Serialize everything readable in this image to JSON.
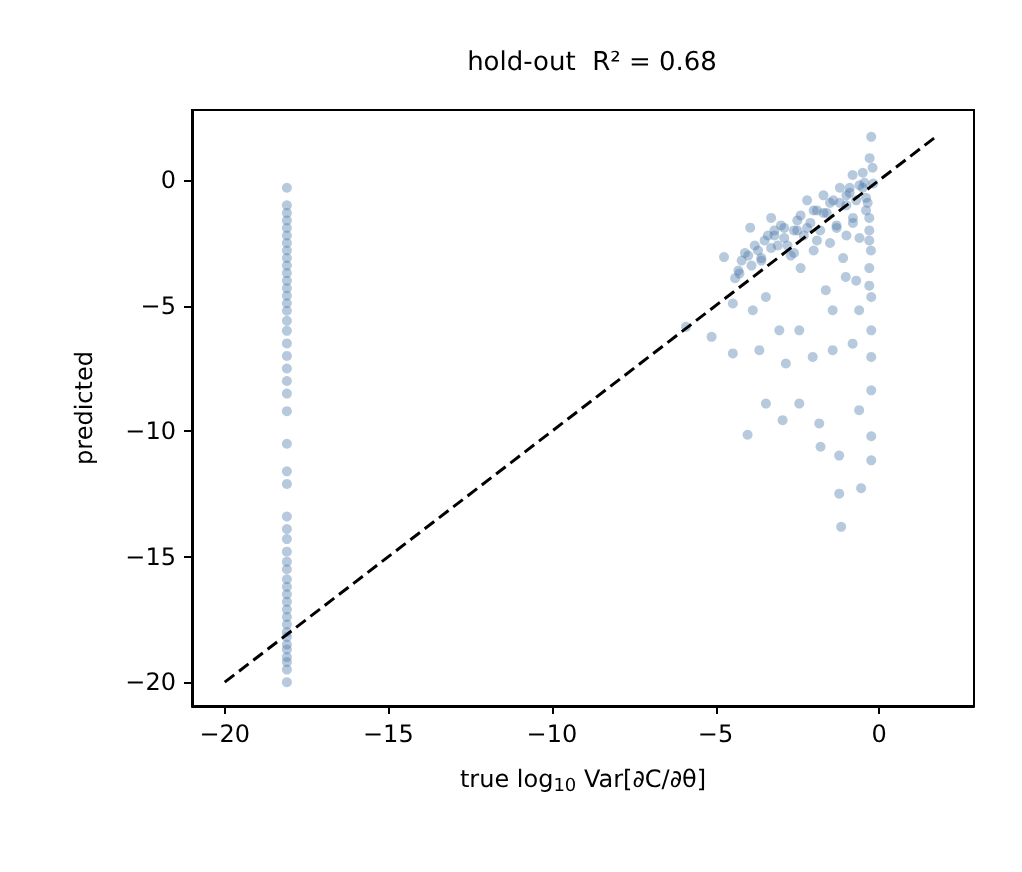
{
  "chart_data": {
    "type": "scatter",
    "title": "hold-out  R² = 0.68",
    "xlabel": "true log$_{10}$ Var[∂C/∂θ]",
    "ylabel": "predicted",
    "xlim": [
      -21.0,
      2.9
    ],
    "ylim": [
      -20.95,
      2.8
    ],
    "xticks": [
      -20,
      -15,
      -10,
      -5,
      0
    ],
    "yticks": [
      -20,
      -15,
      -10,
      -5,
      0
    ],
    "marker": "circle",
    "series": [
      {
        "color": "#4a78ab",
        "x": [
          -18.1,
          -18.1,
          -18.1,
          -18.1,
          -18.1,
          -18.1,
          -18.1,
          -18.1,
          -18.1,
          -18.1,
          -18.1,
          -18.1,
          -18.1,
          -18.1,
          -18.1,
          -18.1,
          -18.1,
          -18.1,
          -18.1,
          -18.1,
          -18.1,
          -18.1,
          -18.1,
          -18.1,
          -18.1,
          -18.1,
          -18.1,
          -18.1,
          -18.1,
          -18.1,
          -18.1,
          -18.1,
          -18.1,
          -18.1,
          -18.1,
          -18.1,
          -18.1,
          -18.1,
          -18.1,
          -18.1,
          -18.1,
          -18.1,
          -18.1,
          -18.1,
          -18.1,
          -18.1,
          -18.1,
          -18.1,
          -0.24,
          -0.29,
          -0.81,
          -0.18,
          -3.94,
          -4.74,
          -4.27,
          -5.9,
          -5.12,
          -4.47,
          -3.46,
          -4.02,
          -2.95,
          -1.79,
          -1.22,
          -1.22,
          -0.55,
          -1.16,
          -0.24,
          -0.24,
          -0.24,
          -0.24,
          -0.24,
          -0.24,
          -0.61,
          -1.83,
          -2.44,
          -2.85,
          -2.03,
          -3.66,
          -3.05,
          -2.44,
          -1.42,
          -3.86,
          -3.46,
          -1.63,
          -1.02,
          -0.61,
          -0.81,
          -1.42,
          -4.47,
          -4.3,
          -4.0,
          -3.8,
          -3.5,
          -3.2,
          -3.0,
          -2.8,
          -2.5,
          -2.3,
          -2.0,
          -1.8,
          -1.5,
          -1.3,
          -1.0,
          -0.8,
          -0.5,
          -0.4,
          -0.3,
          -0.25,
          -0.3,
          -3.6,
          -2.7,
          -2.0,
          -1.5,
          -1.0,
          -0.6,
          -4.2,
          -3.3,
          -2.2,
          -1.2,
          -0.5,
          -0.2,
          -3.9,
          -2.4,
          -1.1,
          -0.7,
          -4.1,
          -3.7,
          -3.4,
          -3.1,
          -2.9,
          -2.6,
          -2.4,
          -2.1,
          -1.9,
          -1.7,
          -1.4,
          -1.2,
          -0.9,
          -0.7,
          -0.45,
          -0.35,
          -4.4,
          -3.6,
          -3.3,
          -2.9,
          -2.6,
          -2.2,
          -1.9,
          -1.6,
          -1.3,
          -1.0,
          -0.8,
          -0.6,
          -0.4,
          -0.3,
          -0.3,
          -0.3,
          -3.2,
          -2.5,
          -1.7,
          -0.9
        ],
        "values": [
          -0.3,
          -1.0,
          -1.3,
          -1.6,
          -1.9,
          -2.2,
          -2.5,
          -2.8,
          -3.1,
          -3.4,
          -3.7,
          -4.0,
          -4.3,
          -4.6,
          -4.9,
          -5.2,
          -5.6,
          -6.0,
          -6.5,
          -7.0,
          -7.5,
          -8.0,
          -8.5,
          -9.2,
          -10.5,
          -11.6,
          -12.1,
          -13.4,
          -13.9,
          -14.3,
          -14.8,
          -15.2,
          -15.5,
          -15.9,
          -16.2,
          -16.5,
          -16.8,
          -17.1,
          -17.4,
          -17.7,
          -18.0,
          -18.2,
          -18.5,
          -18.7,
          -19.0,
          -19.2,
          -19.5,
          -20.0,
          1.73,
          0.88,
          0.21,
          -0.13,
          -1.89,
          -3.06,
          -3.72,
          -5.84,
          -6.24,
          -6.9,
          -8.9,
          -10.14,
          -9.56,
          -10.62,
          -10.97,
          -12.49,
          -12.27,
          -13.81,
          -11.16,
          -10.2,
          -8.37,
          -4.65,
          -5.98,
          -7.04,
          -9.16,
          -9.69,
          -8.9,
          -7.3,
          -7.04,
          -6.77,
          -5.98,
          -5.98,
          -5.18,
          -5.18,
          -4.65,
          -4.38,
          -3.85,
          -5.18,
          -6.51,
          -6.77,
          -4.91,
          -3.6,
          -3.0,
          -2.6,
          -2.4,
          -2.2,
          -1.8,
          -2.6,
          -1.6,
          -2.2,
          -1.2,
          -2.0,
          -0.9,
          -1.8,
          -0.6,
          -1.5,
          -0.3,
          -1.2,
          -2.0,
          -2.8,
          -3.5,
          -3.2,
          -3.0,
          -2.8,
          -2.5,
          -2.2,
          -2.3,
          -3.2,
          -1.5,
          -0.8,
          -0.3,
          0.3,
          0.5,
          -3.4,
          -3.5,
          -3.1,
          -4.0,
          -2.9,
          -2.8,
          -2.2,
          -2.6,
          -1.9,
          -2.0,
          -1.4,
          -1.7,
          -1.2,
          -1.3,
          -0.8,
          -0.9,
          -0.5,
          -0.8,
          -0.1,
          -0.9,
          -3.9,
          -3.1,
          -2.7,
          -2.3,
          -2.9,
          -1.9,
          -2.4,
          -1.3,
          -1.9,
          -1.0,
          -1.7,
          -0.2,
          -0.7,
          -1.5,
          -2.4,
          -4.2,
          -2.0,
          -2.0,
          -0.6,
          -0.3
        ]
      },
      {
        "type": "line",
        "color": "#000000",
        "line_style": "dashed",
        "marker": "none",
        "x": [
          -20,
          1.8
        ],
        "values": [
          -20,
          1.8
        ]
      }
    ]
  }
}
